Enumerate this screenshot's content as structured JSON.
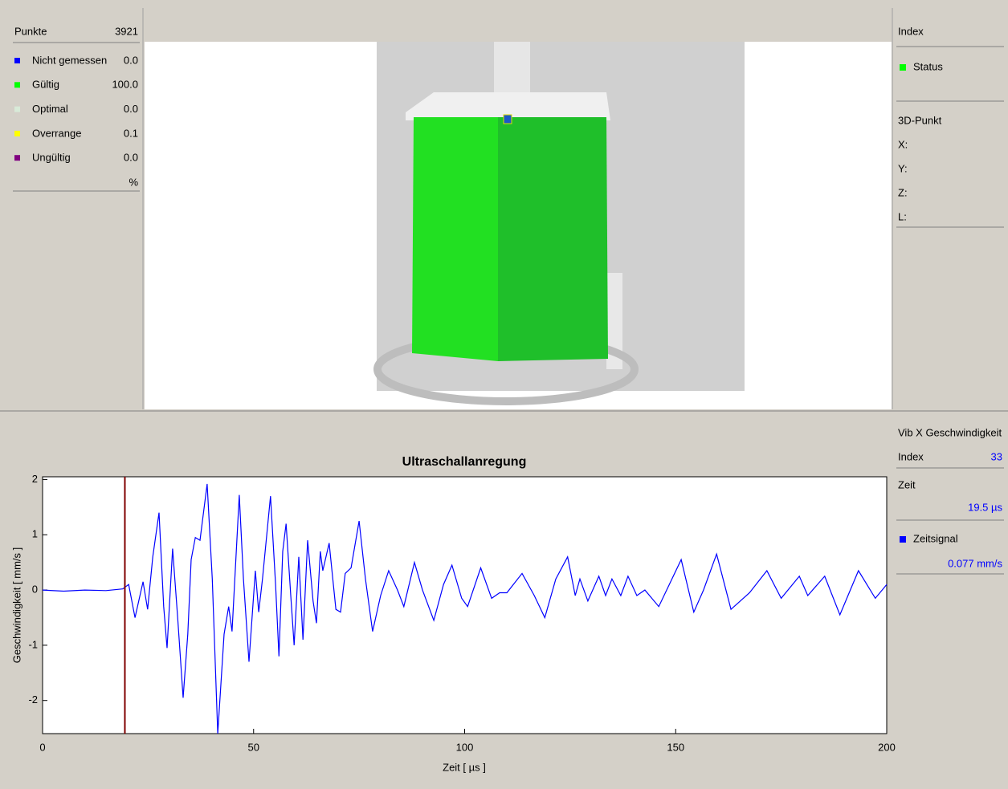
{
  "left_panel": {
    "header": {
      "label": "Punkte",
      "value": "3921"
    },
    "items": [
      {
        "label": "Nicht gemessen",
        "value": "0.0",
        "color": "#0000ff"
      },
      {
        "label": "Gültig",
        "value": "100.0",
        "color": "#00ff00"
      },
      {
        "label": "Optimal",
        "value": "0.0",
        "color": "#d8ead8"
      },
      {
        "label": "Overrange",
        "value": "0.1",
        "color": "#ffff00"
      },
      {
        "label": "Ungültig",
        "value": "0.0",
        "color": "#800080"
      }
    ],
    "unit": "%"
  },
  "right_panel": {
    "title": "Index",
    "status": {
      "label": "Status",
      "color": "#00ff00"
    },
    "point_title": "3D-Punkt",
    "coords": [
      "X:",
      "Y:",
      "Z:",
      "L:"
    ]
  },
  "cursor_panel": {
    "title": "Vib X Geschwindigkeit",
    "index_label": "Index",
    "index_value": "33",
    "time_label": "Zeit",
    "time_value": "19.5 µs",
    "signal_value": "0.077 mm/s"
  },
  "chart_data": {
    "type": "line",
    "title": "Ultraschallanregung",
    "x_label": "Zeit [ µs ]",
    "y_label": "Geschwindigkeit [ mm/s ]",
    "x": [
      0,
      5,
      10,
      15,
      19,
      20.4,
      21.9,
      23.8,
      24.9,
      26.1,
      27.6,
      28.7,
      29.5,
      30.8,
      32,
      33.3,
      34.4,
      35.2,
      36.2,
      37.3,
      39,
      40.2,
      41.5,
      43,
      44.1,
      44.9,
      46.6,
      47.6,
      48.9,
      50.4,
      51.2,
      52.1,
      54,
      55.2,
      56,
      56.9,
      57.7,
      58.8,
      59.6,
      60.7,
      61.7,
      62.8,
      64.1,
      64.9,
      65.8,
      66.4,
      67.9,
      69.5,
      70.6,
      71.7,
      73.1,
      75,
      76.5,
      78.2,
      80.1,
      82,
      84.1,
      85.6,
      88.1,
      90,
      92.7,
      95,
      97,
      99.3,
      100.7,
      103.8,
      106.4,
      108.3,
      110,
      113.6,
      116.5,
      119,
      121.6,
      124.4,
      126.2,
      127.3,
      129.2,
      131.8,
      133.4,
      134.9,
      137,
      138.7,
      140.8,
      142.7,
      146,
      151.3,
      154.3,
      156.6,
      159.7,
      163.1,
      167.5,
      171.6,
      175,
      179.3,
      181.3,
      185.3,
      188.9,
      193.3,
      197.3,
      200
    ],
    "series": [
      {
        "name": "Zeitsignal",
        "color": "#0000ff",
        "values": [
          0,
          -0.02,
          0,
          -0.01,
          0.02,
          0.1,
          -0.5,
          0.15,
          -0.35,
          0.6,
          1.4,
          -0.3,
          -1.05,
          0.75,
          -0.5,
          -1.95,
          -0.8,
          0.55,
          0.95,
          0.9,
          1.92,
          0.2,
          -2.6,
          -0.8,
          -0.3,
          -0.75,
          1.72,
          0.2,
          -1.3,
          0.35,
          -0.4,
          0.2,
          1.7,
          0.1,
          -1.2,
          0.7,
          1.2,
          -0.1,
          -1.0,
          0.6,
          -0.9,
          0.9,
          -0.2,
          -0.6,
          0.7,
          0.35,
          0.85,
          -0.35,
          -0.4,
          0.3,
          0.4,
          1.25,
          0.2,
          -0.75,
          -0.1,
          0.35,
          0,
          -0.3,
          0.5,
          0,
          -0.55,
          0.1,
          0.45,
          -0.15,
          -0.3,
          0.4,
          -0.15,
          -0.05,
          -0.05,
          0.3,
          -0.1,
          -0.5,
          0.2,
          0.6,
          -0.1,
          0.2,
          -0.2,
          0.25,
          -0.1,
          0.2,
          -0.1,
          0.25,
          -0.1,
          0,
          -0.3,
          0.55,
          -0.4,
          0,
          0.65,
          -0.35,
          -0.05,
          0.35,
          -0.15,
          0.25,
          -0.1,
          0.25,
          -0.45,
          0.35,
          -0.15,
          0.1
        ]
      }
    ],
    "xlim": [
      0,
      200
    ],
    "ylim": [
      -2.6,
      2.05
    ],
    "xticks": [
      0,
      50,
      100,
      150,
      200
    ],
    "yticks": [
      -2,
      -1,
      0,
      1,
      2
    ],
    "cursor_x": 19.5,
    "cursor_color": "#800000"
  }
}
